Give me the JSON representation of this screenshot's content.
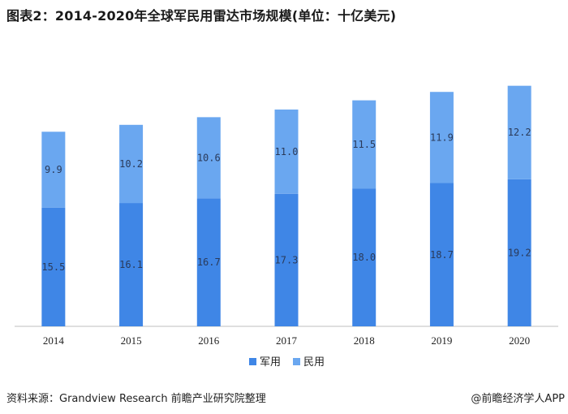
{
  "title": "图表2：2014-2020年全球军民用雷达市场规模(单位：十亿美元)",
  "source": "资料来源：Grandview Research 前瞻产业研究院整理",
  "brand": "@前瞻经济学人APP",
  "colors": {
    "military": "#3f86e6",
    "civil": "#6aa7f0",
    "axis": "#bfbfbf"
  },
  "chart_data": {
    "type": "bar",
    "stacked": true,
    "categories": [
      "2014",
      "2015",
      "2016",
      "2017",
      "2018",
      "2019",
      "2020"
    ],
    "series": [
      {
        "name": "军用",
        "values": [
          15.5,
          16.1,
          16.7,
          17.3,
          18.0,
          18.7,
          19.2
        ],
        "labels": [
          "15.5",
          "16.1",
          "16.7",
          "17.3",
          "18.0",
          "18.7",
          "19.2"
        ]
      },
      {
        "name": "民用",
        "values": [
          9.9,
          10.2,
          10.6,
          11.0,
          11.5,
          11.9,
          12.2
        ],
        "labels": [
          "9.9",
          "10.2",
          "10.6",
          "11.0",
          "11.5",
          "11.9",
          "12.2"
        ]
      }
    ],
    "ylim": [
      0,
      32
    ],
    "legend_position": "bottom",
    "grid": false
  }
}
